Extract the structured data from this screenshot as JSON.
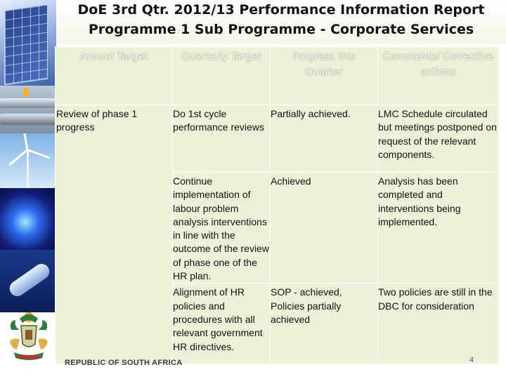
{
  "slide": {
    "title_line1": "DoE 3rd Qtr. 2012/13 Performance Information Report",
    "title_line2": "Programme 1 Sub Programme - Corporate Services",
    "page_number": "4",
    "country_text": "REPUBLIC OF SOUTH AFRICA"
  },
  "table": {
    "headers": {
      "annual": "Annual Target",
      "quarterly": "Quarterly Target",
      "progress": "Progress this Quarter",
      "comments": "Comments/ Corrective actions"
    },
    "annual_target": "Review of phase 1 progress",
    "rows": [
      {
        "quarterly": "Do 1st cycle performance reviews",
        "progress": "Partially achieved.",
        "comments": "LMC Schedule circulated but meetings postponed on request of the relevant components."
      },
      {
        "quarterly": "Continue implementation of labour problem analysis interventions in line with the outcome of the review of phase one of the HR plan.",
        "progress": "Achieved",
        "comments": "Analysis has been completed and interventions being implemented."
      },
      {
        "quarterly": "Alignment of HR policies and procedures with all relevant government HR directives.",
        "progress": "SOP - achieved, Policies partially achieved",
        "comments": "Two policies are still in the DBC for consideration"
      }
    ]
  },
  "colors": {
    "table_bg": "#eef0d8",
    "header_text": "#ffffff",
    "body_text": "#111111"
  }
}
